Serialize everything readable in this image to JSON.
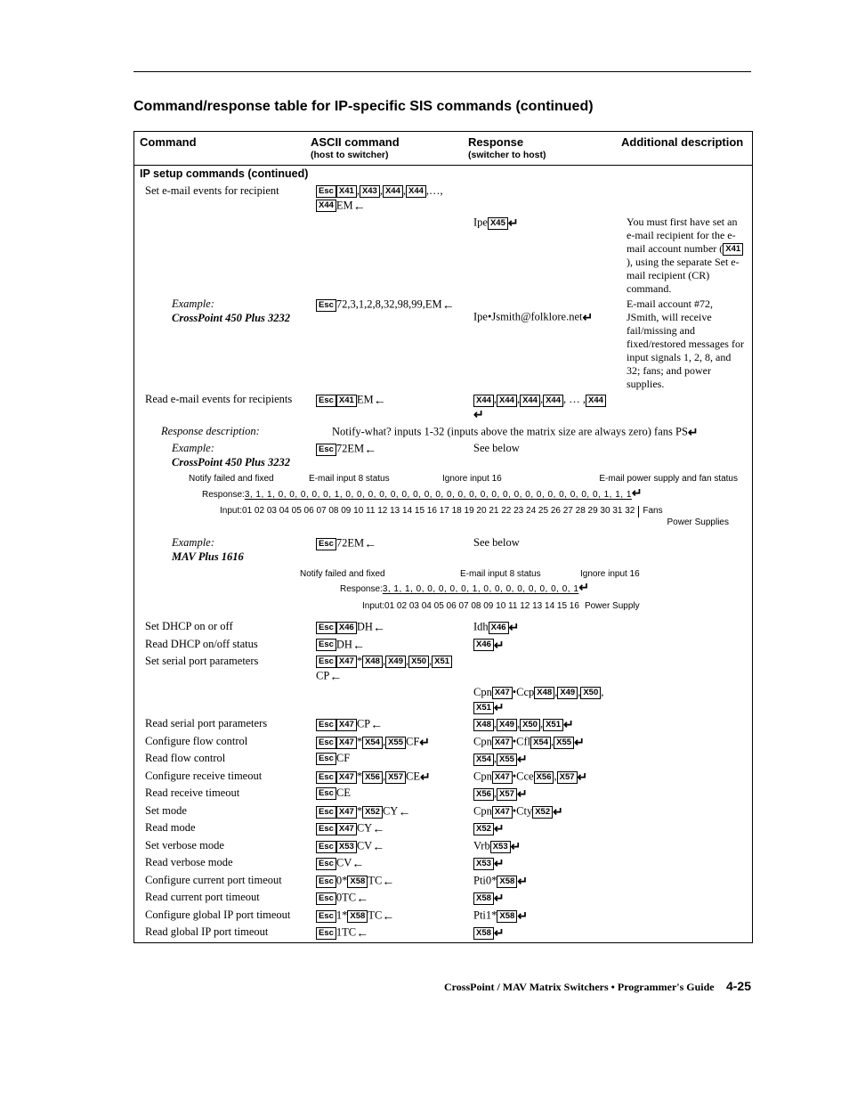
{
  "page": {
    "section_title": "Command/response table for IP-specific SIS commands (continued)",
    "footer_left": "CrossPoint / MAV Matrix Switchers • Programmer's Guide",
    "footer_page": "4-25"
  },
  "headers": {
    "cmd": "Command",
    "ascii": "ASCII command",
    "ascii_sub": "(host to switcher)",
    "resp": "Response",
    "resp_sub": "(switcher to host)",
    "desc": "Additional description"
  },
  "subhead": "IP setup commands (continued)",
  "rows": {
    "r1_cmd": "Set e-mail events for recipient",
    "r1_resp_prefix": "Ipe",
    "r1_desc": "You must first have set an e-mail recipient for the e-mail account number (",
    "r1_desc2": "), using the separate Set e-mail recipient (CR) command.",
    "r2_ex_label": "Example:",
    "r2_ex_name": "CrossPoint 450 Plus 3232",
    "r2_ascii": "72,3,1,2,8,32,98,99,EM",
    "r2_resp": "Ipe•Jsmith@folklore.net",
    "r2_desc": "E-mail account #72, JSmith, will receive fail/missing and fixed/restored messages for input signals 1, 2, 8, and 32; fans; and power supplies.",
    "r3_cmd": "Read e-mail events for recipients",
    "r3_ascii_suffix": "EM",
    "r4_respdesc_label": "Response description:",
    "r4_respdesc_text": "Notify-what? inputs 1-32 (inputs above the matrix size are always zero) fans PS",
    "r5_ex_label": "Example:",
    "r5_ex_name": "CrossPoint 450 Plus 3232",
    "r5_ascii": "72",
    "r5_resp": "See below",
    "diagram1": {
      "label_a": "Notify failed and fixed",
      "label_b": "E-mail input 8 status",
      "label_c": "Ignore input 16",
      "label_d": "E-mail power supply and fan status",
      "response_prefix": "Response: ",
      "response_values": "3, 1, 1, 0, 0, 0, 0, 0, 1, 0, 0, 0, 0, 0, 0, 0, 0, 0, 0, 0, 0, 0, 0, 0, 0, 0, 0, 0, 0, 0, 0, 0, 1, 1, 1",
      "inputs_prefix": "Input: ",
      "inputs_values": "01 02 03 04 05 06 07 08 09 10 11 12 13 14 15 16 17 18 19 20 21 22 23 24 25 26 27 28 29 30 31 32",
      "right_label_top": "Fans",
      "right_label_bot": "Power Supplies"
    },
    "r6_ex_label": "Example:",
    "r6_ex_name": "MAV Plus 1616",
    "r6_ascii": "72",
    "r6_resp": "See below",
    "diagram2": {
      "label_a": "Notify failed and fixed",
      "label_b": "E-mail input 8 status",
      "label_c": "Ignore input 16",
      "response_prefix": "Response: ",
      "response_values": "3, 1, 1, 0, 0, 0, 0, 0, 1, 0, 0, 0, 0, 0, 0, 0, 0, 1",
      "inputs_prefix": "Input: ",
      "inputs_values": "01 02 03 04 05 06 07 08 09 10 11 12 13 14 15 16",
      "right_label": "Power Supply"
    },
    "simple": [
      {
        "cmd": "Set DHCP on or off",
        "ascii": {
          "pre": "Esc",
          "mid": "X46",
          "suf": "DH",
          "arr": "left"
        },
        "resp": {
          "t": "Idh",
          "x": "X46",
          "ret": true
        }
      },
      {
        "cmd": "Read DHCP on/off status",
        "ascii": {
          "pre": "Esc",
          "suf": "DH",
          "arr": "left"
        },
        "resp": {
          "x": "X46",
          "ret": true
        }
      },
      {
        "cmd": "Set serial port parameters",
        "ascii": {
          "pre": "Esc",
          "mid": "X47",
          "star": true,
          "xs": [
            "X48",
            "X49",
            "X50",
            "X51"
          ],
          "suf": "CP",
          "arr": "left"
        },
        "resp": {
          "t": "Cpn",
          "x": "X47",
          "bullet": true,
          "t2": "Ccp",
          "xs": [
            "X48",
            "X49",
            "X50",
            "X51"
          ],
          "ret": true
        }
      },
      {
        "cmd": "Read serial port parameters",
        "ascii": {
          "pre": "Esc",
          "mid": "X47",
          "suf": "CP",
          "arr": "left"
        },
        "resp": {
          "xs": [
            "X48",
            "X49",
            "X50",
            "X51"
          ],
          "ret": true
        }
      },
      {
        "cmd": "Configure flow control",
        "ascii": {
          "pre": "Esc",
          "mid": "X47",
          "star": true,
          "xs": [
            "X54",
            "X55"
          ],
          "suf": "CF",
          "arr": "ret"
        },
        "resp": {
          "t": "Cpn",
          "x": "X47",
          "bullet": true,
          "t2": "Cfl",
          "xs": [
            "X54",
            "X55"
          ],
          "ret": true
        }
      },
      {
        "cmd": "Read flow control",
        "ascii": {
          "pre": "Esc",
          "suf": "CF"
        },
        "resp": {
          "xs": [
            "X54",
            "X55"
          ],
          "ret": true
        }
      },
      {
        "cmd": "Configure receive timeout",
        "ascii": {
          "pre": "Esc",
          "mid": "X47",
          "star": true,
          "xs": [
            "X56",
            "X57"
          ],
          "suf": "CE",
          "arr": "ret"
        },
        "resp": {
          "t": "Cpn",
          "x": "X47",
          "bullet": true,
          "t2": "Cce",
          "xs": [
            "X56",
            "X57"
          ],
          "ret": true
        }
      },
      {
        "cmd": "Read receive timeout",
        "ascii": {
          "pre": "Esc",
          "suf": "CE"
        },
        "resp": {
          "xs": [
            "X56",
            "X57"
          ],
          "ret": true
        }
      },
      {
        "cmd": "Set mode",
        "ascii": {
          "pre": "Esc",
          "mid": "X47",
          "star": true,
          "xs": [
            "X52"
          ],
          "suf": "CY",
          "arr": "left"
        },
        "resp": {
          "t": "Cpn",
          "x": "X47",
          "bullet": true,
          "t2": "Cty",
          "xs": [
            "X52"
          ],
          "ret": true
        }
      },
      {
        "cmd": "Read mode",
        "ascii": {
          "pre": "Esc",
          "mid": "X47",
          "suf": "CY",
          "arr": "left"
        },
        "resp": {
          "x": "X52",
          "ret": true
        }
      },
      {
        "cmd": "Set verbose mode",
        "ascii": {
          "pre": "Esc",
          "mid": "X53",
          "suf": "CV",
          "arr": "left"
        },
        "resp": {
          "t": "Vrb",
          "x": "X53",
          "ret": true
        }
      },
      {
        "cmd": "Read verbose mode",
        "ascii": {
          "pre": "Esc",
          "suf": "CV",
          "arr": "left"
        },
        "resp": {
          "x": "X53",
          "ret": true
        }
      },
      {
        "cmd": "Configure current port timeout",
        "ascii": {
          "pre": "Esc",
          "lit": "0*",
          "mid": "X58",
          "suf": "TC",
          "arr": "left"
        },
        "resp": {
          "t": "Pti0*",
          "x": "X58",
          "ret": true
        }
      },
      {
        "cmd": "Read current port timeout",
        "ascii": {
          "pre": "Esc",
          "lit": "0",
          "suf": "TC",
          "arr": "left"
        },
        "resp": {
          "x": "X58",
          "ret": true
        }
      },
      {
        "cmd": "Configure global IP port timeout",
        "ascii": {
          "pre": "Esc",
          "lit": "1*",
          "mid": "X58",
          "suf": "TC",
          "arr": "left"
        },
        "resp": {
          "t": "Pti1*",
          "x": "X58",
          "ret": true
        }
      },
      {
        "cmd": "Read global IP port timeout",
        "ascii": {
          "pre": "Esc",
          "lit": "1",
          "suf": "TC",
          "arr": "left"
        },
        "resp": {
          "x": "X58",
          "ret": true
        }
      }
    ]
  }
}
